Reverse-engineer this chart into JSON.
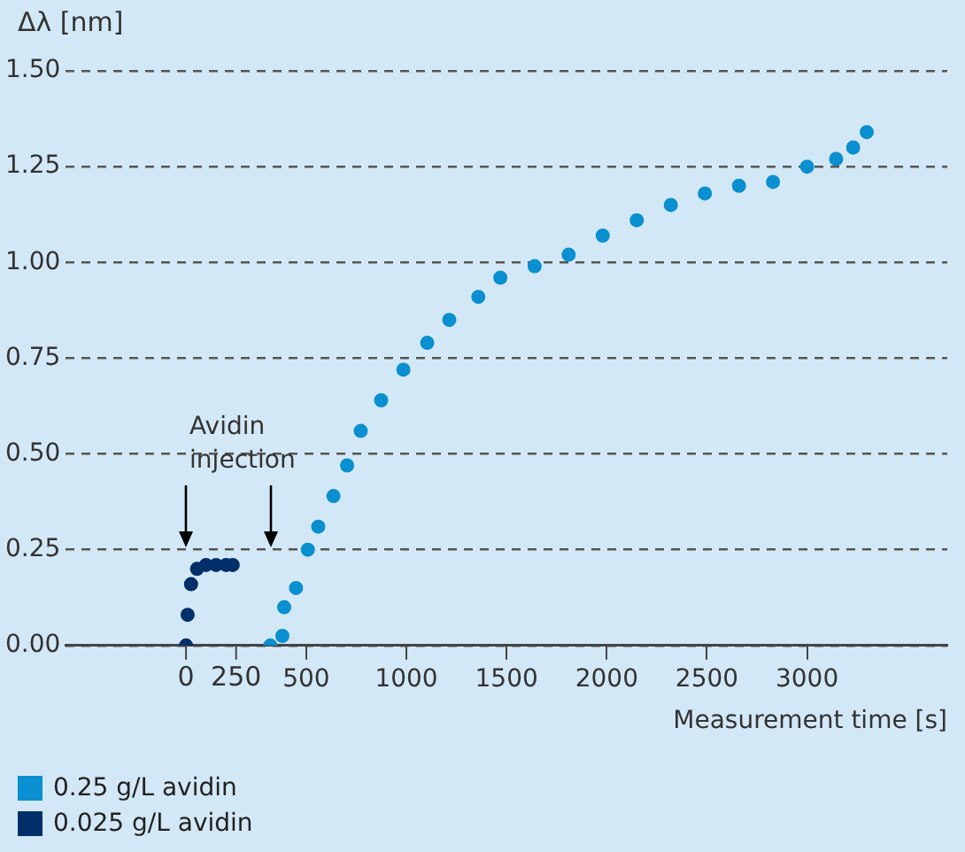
{
  "chart_data": {
    "type": "scatter",
    "ylabel": "Δλ [nm]",
    "xlabel": "Measurement time [s]",
    "annotations": [
      "Avidin injection"
    ],
    "xlim": [
      -700,
      3700
    ],
    "xticks": [
      500,
      1000,
      1500,
      2000,
      2500,
      3000
    ],
    "x2lim": [
      -600,
      3800
    ],
    "x2ticks": [
      0,
      250
    ],
    "ylim": [
      0,
      1.5
    ],
    "yticks": [
      {
        "value": 0,
        "label": "0.00"
      },
      {
        "value": 0.25,
        "label": "0.25"
      },
      {
        "value": 0.5,
        "label": "0.50"
      },
      {
        "value": 0.75,
        "label": "0.75"
      },
      {
        "value": 1,
        "label": "1.00"
      },
      {
        "value": 1.25,
        "label": "1.25"
      },
      {
        "value": 1.5,
        "label": "1.50"
      }
    ],
    "grid": "y",
    "legend": "bottom left",
    "marker": "circle",
    "series": [
      {
        "name": "0.25 g/L avidin",
        "color": "#0a8fd0",
        "x": [
          321,
          381,
          390,
          449,
          508,
          560,
          636,
          704,
          772,
          874,
          985,
          1104,
          1214,
          1359,
          1469,
          1640,
          1810,
          1980,
          2150,
          2320,
          2490,
          2660,
          2830,
          3000,
          3145,
          3230,
          3298
        ],
        "values": [
          0.0,
          0.025,
          0.1,
          0.15,
          0.25,
          0.31,
          0.39,
          0.47,
          0.56,
          0.64,
          0.72,
          0.79,
          0.85,
          0.91,
          0.96,
          0.99,
          1.02,
          1.07,
          1.11,
          1.15,
          1.18,
          1.2,
          1.21,
          1.25,
          1.27,
          1.3,
          1.34
        ]
      },
      {
        "name": "0.025 g/L avidin",
        "color": "#00306a",
        "axis": "x2",
        "x": [
          0,
          8,
          25,
          55,
          100,
          150,
          200,
          233
        ],
        "values": [
          0,
          0.08,
          0.16,
          0.2,
          0.21,
          0.21,
          0.21,
          0.21
        ]
      }
    ]
  }
}
